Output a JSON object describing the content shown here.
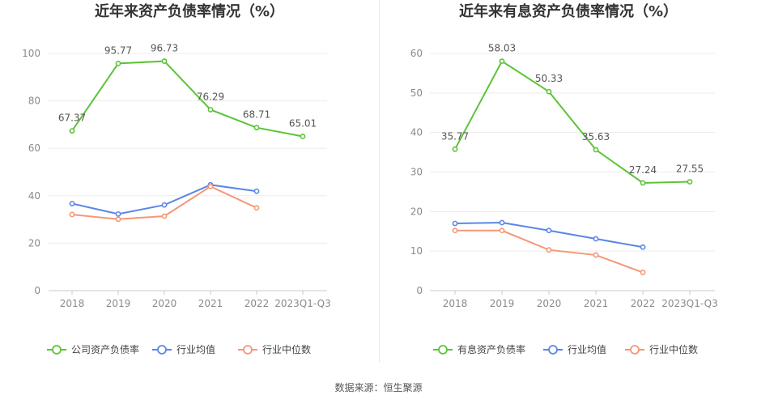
{
  "chart_data": [
    {
      "type": "line",
      "title": "近年来资产负债率情况（%）",
      "categories": [
        "2018",
        "2019",
        "2020",
        "2021",
        "2022",
        "2023Q1-Q3"
      ],
      "ylim": [
        0,
        100
      ],
      "yticks": [
        0,
        20,
        40,
        60,
        80,
        100
      ],
      "grid": true,
      "legend_position": "bottom",
      "series": [
        {
          "name": "公司资产负债率",
          "color": "#5cc437",
          "values": [
            67.37,
            95.77,
            96.73,
            76.29,
            68.71,
            65.01
          ],
          "labels": [
            "67.37",
            "95.77",
            "96.73",
            "76.29",
            "68.71",
            "65.01"
          ]
        },
        {
          "name": "行业均值",
          "color": "#5b86e5",
          "values": [
            36.7,
            32.3,
            36.1,
            44.6,
            41.9,
            null
          ]
        },
        {
          "name": "行业中位数",
          "color": "#f59776",
          "values": [
            32.1,
            30.1,
            31.4,
            43.9,
            34.9,
            null
          ]
        }
      ]
    },
    {
      "type": "line",
      "title": "近年来有息资产负债率情况（%）",
      "categories": [
        "2018",
        "2019",
        "2020",
        "2021",
        "2022",
        "2023Q1-Q3"
      ],
      "ylim": [
        0,
        60
      ],
      "yticks": [
        0,
        10,
        20,
        30,
        40,
        50,
        60
      ],
      "grid": true,
      "legend_position": "bottom",
      "series": [
        {
          "name": "有息资产负债率",
          "color": "#5cc437",
          "values": [
            35.77,
            58.03,
            50.33,
            35.63,
            27.24,
            27.55
          ],
          "labels": [
            "35.77",
            "58.03",
            "50.33",
            "35.63",
            "27.24",
            "27.55"
          ]
        },
        {
          "name": "行业均值",
          "color": "#5b86e5",
          "values": [
            17.0,
            17.2,
            15.2,
            13.1,
            11.0,
            null
          ]
        },
        {
          "name": "行业中位数",
          "color": "#f59776",
          "values": [
            15.2,
            15.2,
            10.3,
            9.0,
            4.6,
            null
          ]
        }
      ]
    }
  ],
  "footer": {
    "source": "数据来源：恒生聚源"
  }
}
